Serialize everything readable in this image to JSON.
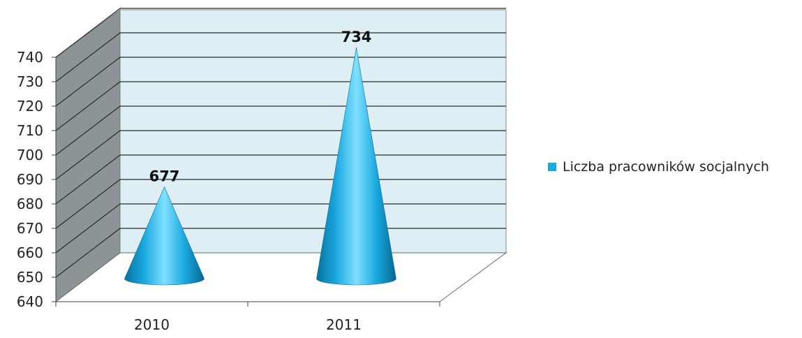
{
  "chart_data": {
    "type": "bar",
    "shape": "cone-3d",
    "title": "",
    "xlabel": "",
    "ylabel": "",
    "categories": [
      "2010",
      "2011"
    ],
    "series": [
      {
        "name": "Liczba pracowników socjalnych",
        "values": [
          677,
          734
        ]
      }
    ],
    "data_labels": [
      "677",
      "734"
    ],
    "ylim": [
      640,
      740
    ],
    "yticks": [
      "640",
      "650",
      "660",
      "670",
      "680",
      "690",
      "700",
      "710",
      "720",
      "730",
      "740"
    ],
    "grid": true,
    "legend_position": "right",
    "colors": {
      "series": "#1AA9E0",
      "back_wall": "#DDEEF5",
      "side_wall": "#8C9497",
      "floor": "#FFFFFF",
      "grid": "#2B2B2B"
    }
  }
}
